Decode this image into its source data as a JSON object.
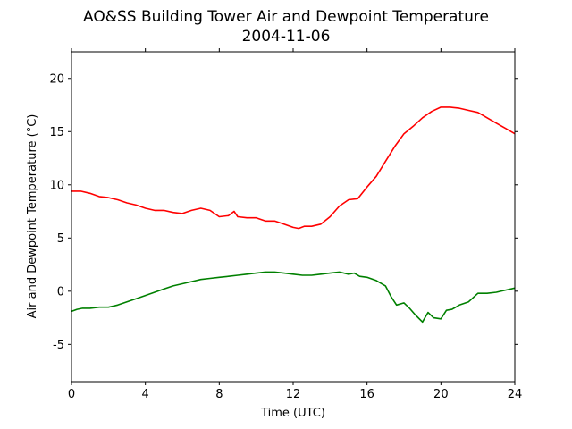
{
  "chart_data": {
    "type": "line",
    "title": "AO&SS Building Tower Air and Dewpoint Temperature",
    "subtitle": "2004-11-06",
    "xlabel": "Time (UTC)",
    "ylabel": "Air and Dewpoint Temperature (°C)",
    "xlim": [
      0,
      24
    ],
    "ylim": [
      -8.5,
      22.5
    ],
    "xticks": [
      0,
      4,
      8,
      12,
      16,
      20,
      24
    ],
    "yticks": [
      -5,
      0,
      5,
      10,
      15,
      20
    ],
    "grid": false,
    "legend": "none",
    "series": [
      {
        "color": "#ff0000",
        "x": [
          0,
          0.5,
          1,
          1.5,
          2,
          2.5,
          3,
          3.5,
          4,
          4.5,
          5,
          5.5,
          6,
          6.5,
          7,
          7.5,
          8,
          8.5,
          8.8,
          9,
          9.5,
          10,
          10.5,
          11,
          11.5,
          12,
          12.3,
          12.6,
          13,
          13.5,
          14,
          14.5,
          15,
          15.5,
          16,
          16.5,
          17,
          17.5,
          18,
          18.5,
          19,
          19.5,
          20,
          20.5,
          21,
          21.5,
          22,
          22.5,
          23,
          23.5,
          24
        ],
        "values": [
          9.4,
          9.4,
          9.2,
          8.9,
          8.8,
          8.6,
          8.3,
          8.1,
          7.8,
          7.6,
          7.6,
          7.4,
          7.3,
          7.6,
          7.8,
          7.6,
          7.0,
          7.1,
          7.5,
          7.0,
          6.9,
          6.9,
          6.6,
          6.6,
          6.3,
          6.0,
          5.9,
          6.1,
          6.1,
          6.3,
          7.0,
          8.0,
          8.6,
          8.7,
          9.8,
          10.8,
          12.2,
          13.6,
          14.8,
          15.5,
          16.3,
          16.9,
          17.3,
          17.3,
          17.2,
          17.0,
          16.8,
          16.3,
          15.8,
          15.3,
          14.8
        ]
      },
      {
        "color": "#008000",
        "x": [
          0,
          0.3,
          0.6,
          1,
          1.5,
          2,
          2.5,
          3,
          3.5,
          4,
          4.5,
          5,
          5.5,
          6,
          6.5,
          7,
          7.5,
          8,
          8.5,
          9,
          9.5,
          10,
          10.5,
          11,
          11.5,
          12,
          12.5,
          13,
          13.5,
          14,
          14.5,
          15,
          15.3,
          15.6,
          16,
          16.5,
          17,
          17.3,
          17.6,
          18,
          18.3,
          18.6,
          19,
          19.3,
          19.6,
          20,
          20.3,
          20.6,
          21,
          21.5,
          22,
          22.5,
          23,
          23.5,
          24
        ],
        "values": [
          -1.9,
          -1.7,
          -1.6,
          -1.6,
          -1.5,
          -1.5,
          -1.3,
          -1.0,
          -0.7,
          -0.4,
          -0.1,
          0.2,
          0.5,
          0.7,
          0.9,
          1.1,
          1.2,
          1.3,
          1.4,
          1.5,
          1.6,
          1.7,
          1.8,
          1.8,
          1.7,
          1.6,
          1.5,
          1.5,
          1.6,
          1.7,
          1.8,
          1.6,
          1.7,
          1.4,
          1.3,
          1.0,
          0.5,
          -0.5,
          -1.3,
          -1.1,
          -1.6,
          -2.2,
          -2.9,
          -2.0,
          -2.5,
          -2.6,
          -1.8,
          -1.7,
          -1.3,
          -1.0,
          -0.2,
          -0.2,
          -0.1,
          0.1,
          0.3
        ]
      }
    ]
  }
}
